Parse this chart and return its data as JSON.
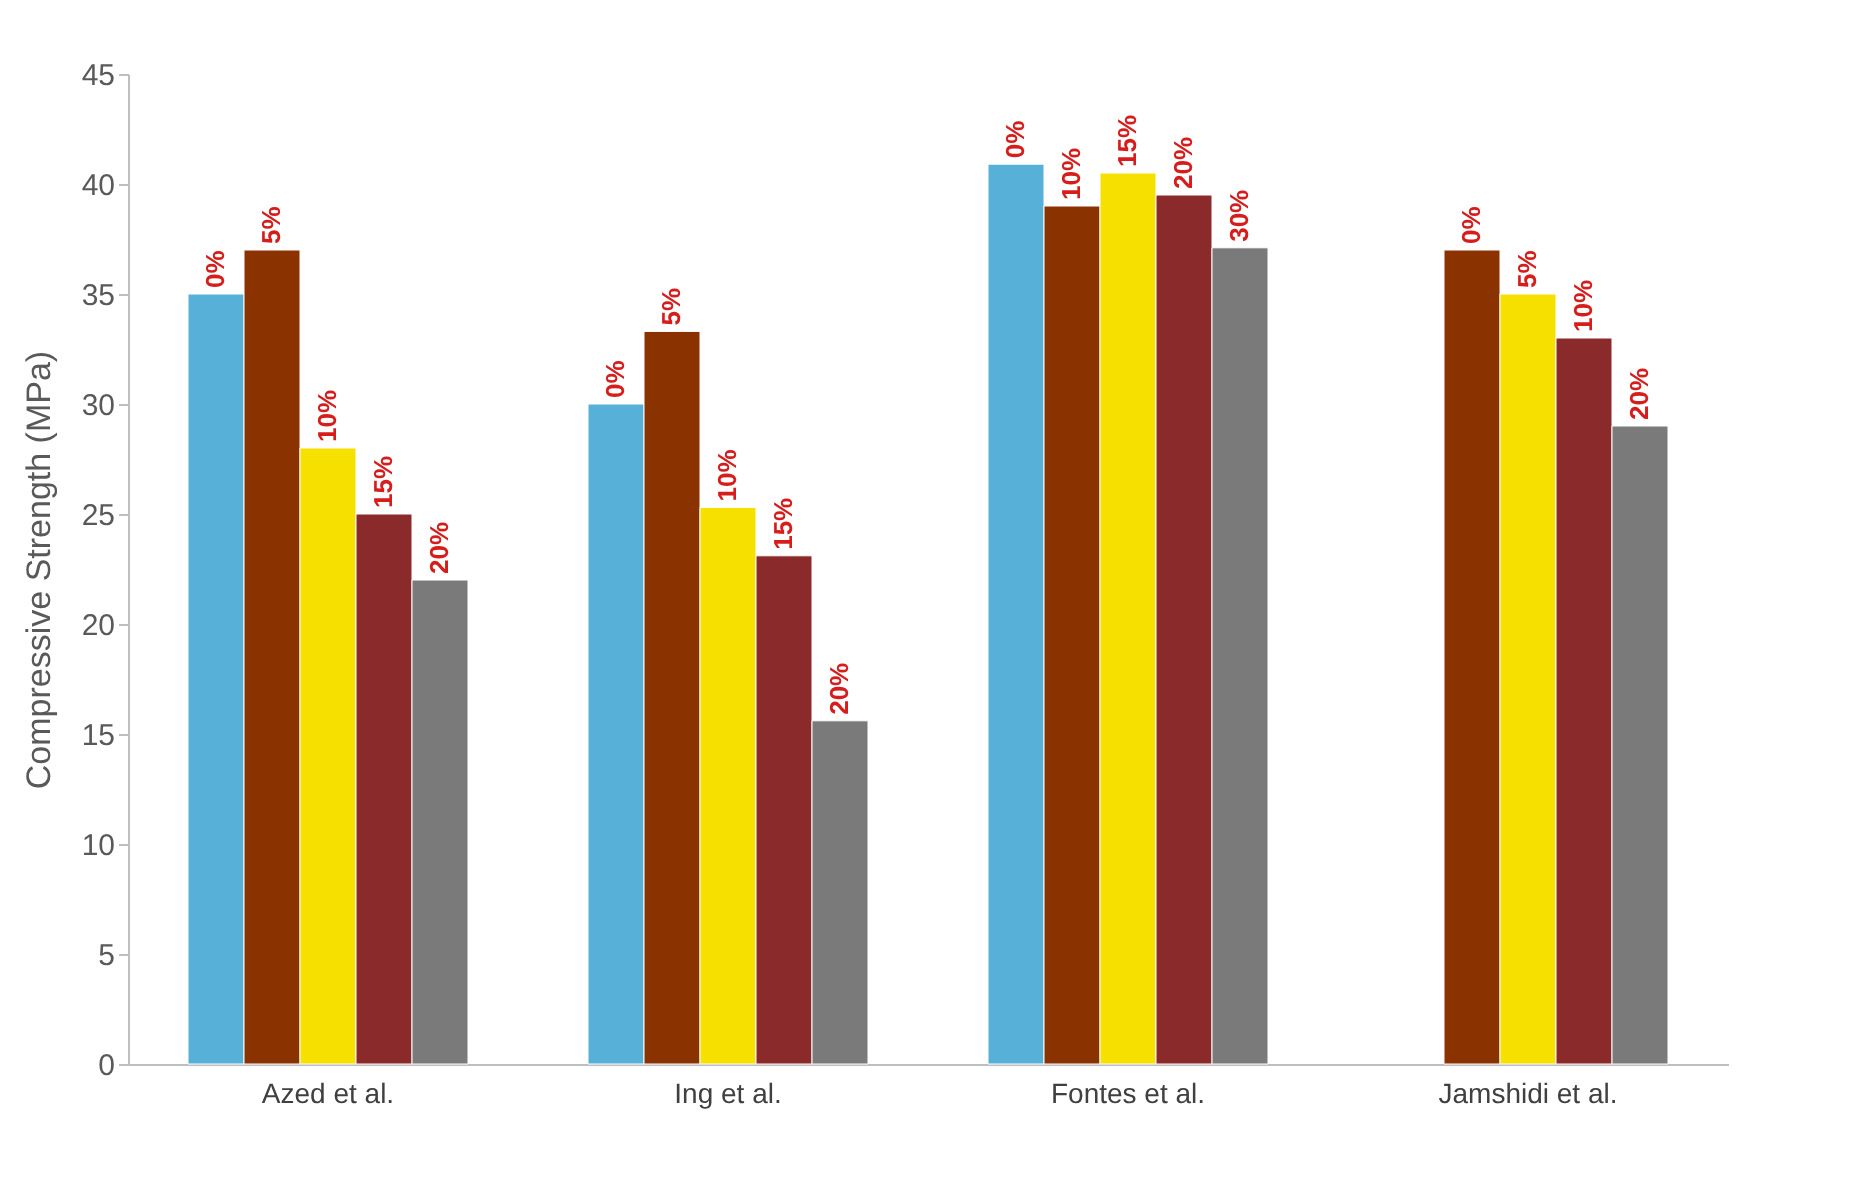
{
  "chart_data": {
    "type": "bar",
    "ylabel": "Compressive Strength (MPa)",
    "categories": [
      "Azed et al.",
      "Ing et al.",
      "Fontes et al.",
      "Jamshidi et al."
    ],
    "ylim": [
      0,
      45
    ],
    "yticks": [
      0,
      5,
      10,
      15,
      20,
      25,
      30,
      35,
      40,
      45
    ],
    "grid": false,
    "legend": false,
    "series": [
      {
        "color": "#56b0d8",
        "values": [
          35,
          30,
          40.9,
          null
        ]
      },
      {
        "color": "#8b3300",
        "values": [
          37,
          33.3,
          39,
          37
        ]
      },
      {
        "color": "#f5e000",
        "values": [
          28,
          25.3,
          40.5,
          35
        ]
      },
      {
        "color": "#8b2a2a",
        "values": [
          25,
          23.1,
          39.5,
          33
        ]
      },
      {
        "color": "#7a7a7a",
        "values": [
          22,
          15.6,
          37.1,
          29
        ]
      }
    ],
    "annotations": [
      "0%",
      "5%",
      "10%",
      "15%",
      "20%",
      "0%",
      "5%",
      "10%",
      "15%",
      "20%",
      "0%",
      "10%",
      "15%",
      "20%",
      "30%",
      "0%",
      "5%",
      "10%",
      "20%"
    ]
  }
}
